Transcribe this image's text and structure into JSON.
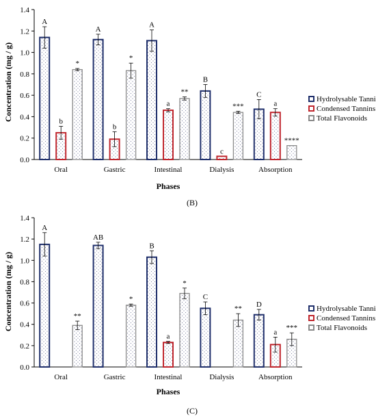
{
  "colors": {
    "hydrolysable": "#1f2f6b",
    "condensed": "#c0262d",
    "flavonoids": "#8a8a8a",
    "dots": "#7b7fa0",
    "axis": "#000000"
  },
  "chart_data": [
    {
      "type": "bar",
      "panel_label": "(B)",
      "xlabel": "Phases",
      "ylabel": "Concentration (mg / g)",
      "ylim": [
        0,
        1.4
      ],
      "yticks": [
        "0.0",
        "0.2",
        "0.4",
        "0.6",
        "0.8",
        "1.0",
        "1.2",
        "1.4"
      ],
      "categories": [
        "Oral",
        "Gastric",
        "Intestinal",
        "Dialysis",
        "Absorption"
      ],
      "legend_position": "right",
      "series": [
        {
          "name": "Hydrolysable Tannins",
          "values": [
            1.14,
            1.12,
            1.11,
            0.64,
            0.47
          ],
          "errors": [
            0.1,
            0.05,
            0.1,
            0.06,
            0.09
          ],
          "labels": [
            "A",
            "A",
            "A",
            "B",
            "C"
          ]
        },
        {
          "name": "Condensed Tannins",
          "values": [
            0.25,
            0.19,
            0.46,
            0.03,
            0.44
          ],
          "errors": [
            0.06,
            0.07,
            0.015,
            0.0,
            0.035
          ],
          "labels": [
            "b",
            "b",
            "a",
            "c",
            "a"
          ]
        },
        {
          "name": "Total Flavonoids",
          "values": [
            0.84,
            0.83,
            0.57,
            0.44,
            0.13
          ],
          "errors": [
            0.01,
            0.07,
            0.015,
            0.01,
            0.0
          ],
          "labels": [
            "*",
            "*",
            "**",
            "***",
            "****"
          ]
        }
      ]
    },
    {
      "type": "bar",
      "panel_label": "(C)",
      "xlabel": "Phases",
      "ylabel": "Concentration (mg / g)",
      "ylim": [
        0,
        1.4
      ],
      "yticks": [
        "0.0",
        "0.2",
        "0.4",
        "0.6",
        "0.8",
        "1.0",
        "1.2",
        "1.4"
      ],
      "categories": [
        "Oral",
        "Gastric",
        "Intestinal",
        "Dialysis",
        "Absorption"
      ],
      "legend_position": "right",
      "series": [
        {
          "name": "Hydrolysable Tannins",
          "values": [
            1.15,
            1.14,
            1.03,
            0.55,
            0.49
          ],
          "errors": [
            0.11,
            0.03,
            0.06,
            0.06,
            0.05
          ],
          "labels": [
            "A",
            "AB",
            "B",
            "C",
            "D"
          ]
        },
        {
          "name": "Condensed Tannins",
          "values": [
            null,
            null,
            0.23,
            null,
            0.21
          ],
          "errors": [
            null,
            null,
            0.01,
            null,
            0.07
          ],
          "labels": [
            "",
            "",
            "a",
            "",
            "a"
          ]
        },
        {
          "name": "Total Flavonoids",
          "values": [
            0.39,
            0.58,
            0.69,
            0.44,
            0.26
          ],
          "errors": [
            0.04,
            0.01,
            0.05,
            0.06,
            0.06
          ],
          "labels": [
            "**",
            "*",
            "*",
            "**",
            "***"
          ]
        }
      ]
    }
  ]
}
